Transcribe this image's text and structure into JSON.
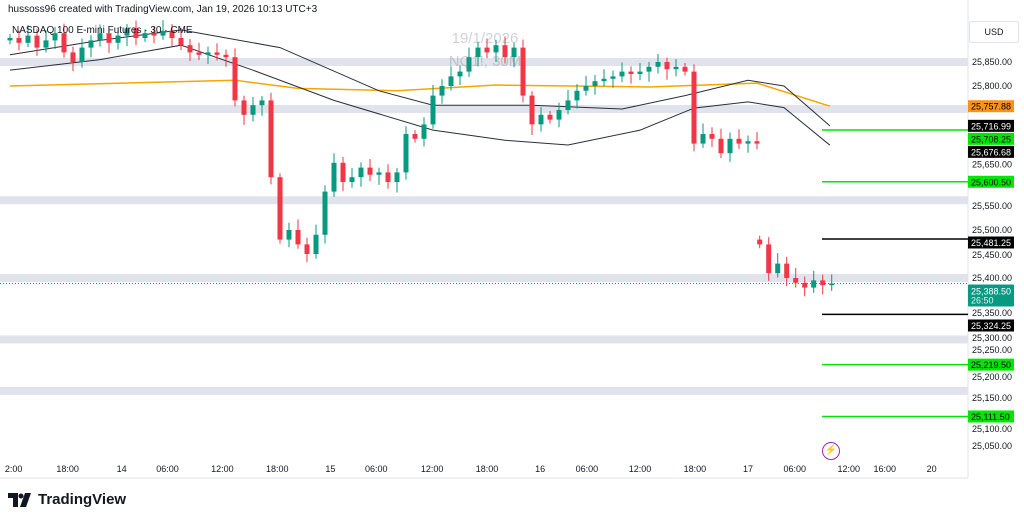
{
  "header": {
    "credit": "hussoss96 created with TradingView.com, Jan 19, 2026 10:13 UTC+3"
  },
  "symbol": {
    "title": "NASDAQ 100 E-mini Futures · 30 · CME"
  },
  "watermark": {
    "date": "19/1/2026",
    "ticker": "NQ1!, 30M"
  },
  "currency_button": "USD",
  "brand": {
    "name": "TradingView"
  },
  "colors": {
    "up": "#089981",
    "down": "#f23645",
    "ma": "#f7a600",
    "band": "#2a2e39",
    "level_green": "#00e600",
    "level_black": "#000000",
    "zone": "#e0e3eb"
  },
  "chart_data": {
    "type": "candlestick",
    "title": "NASDAQ 100 E-mini Futures · 30 · CME",
    "y_axis": {
      "range": [
        25000,
        25920
      ],
      "ticks": [
        "25,850.00",
        "25,800.00",
        "25,650.00",
        "25,550.00",
        "25,500.00",
        "25,450.00",
        "25,400.00",
        "25,350.00",
        "25,300.00",
        "25,250.00",
        "25,200.00",
        "25,150.00",
        "25,100.00",
        "25,050.00"
      ],
      "tick_values": [
        25850,
        25800,
        25650,
        25550,
        25500,
        25450,
        25400,
        25350,
        25300,
        25250,
        25200,
        25150,
        25100,
        25050
      ]
    },
    "x_axis": {
      "labels": [
        {
          "t": 0.4,
          "label": "2:00"
        },
        {
          "t": 6.4,
          "label": "18:00"
        },
        {
          "t": 12.4,
          "label": "14"
        },
        {
          "t": 17.5,
          "label": "06:00"
        },
        {
          "t": 23.6,
          "label": "12:00"
        },
        {
          "t": 29.7,
          "label": "18:00"
        },
        {
          "t": 35.6,
          "label": "15"
        },
        {
          "t": 40.7,
          "label": "06:00"
        },
        {
          "t": 46.9,
          "label": "12:00"
        },
        {
          "t": 53,
          "label": "18:00"
        },
        {
          "t": 58.9,
          "label": "16"
        },
        {
          "t": 64.1,
          "label": "06:00"
        },
        {
          "t": 70,
          "label": "12:00"
        },
        {
          "t": 76.1,
          "label": "18:00"
        },
        {
          "t": 82,
          "label": "17"
        },
        {
          "t": 87.2,
          "label": "06:00"
        },
        {
          "t": 93.2,
          "label": "12:00"
        },
        {
          "t": 97.2,
          "label": "16:00"
        },
        {
          "t": 102.4,
          "label": "20"
        }
      ]
    },
    "closes_segment1": [
      25900,
      25890,
      25905,
      25880,
      25895,
      25910,
      25870,
      25850,
      25880,
      25895,
      25910,
      25890,
      25905,
      25920,
      25900,
      25910,
      25905,
      25915,
      25900,
      25885,
      25870,
      25865,
      25870,
      25865,
      25860,
      25770,
      25740,
      25760,
      25770,
      25610,
      25480,
      25500,
      25470,
      25450,
      25490,
      25580,
      25640,
      25600,
      25610,
      25630,
      25615,
      25620,
      25600,
      25620,
      25700,
      25690,
      25720,
      25780,
      25800,
      25820,
      25830,
      25860,
      25880,
      25870,
      25885,
      25860,
      25880,
      25780,
      25720,
      25740,
      25730,
      25750,
      25770,
      25790,
      25800,
      25810,
      25815,
      25820,
      25830,
      25825,
      25830,
      25840,
      25850,
      25835,
      25840,
      25830,
      25680,
      25700,
      25690,
      25660,
      25690,
      25680,
      25685,
      25680
    ],
    "closes_segment2": [
      25470,
      25410,
      25430,
      25400,
      25390,
      25380,
      25395,
      25385,
      25388.5
    ],
    "segment2_start_t": 83.3,
    "ma_series": {
      "name": "MA",
      "points": [
        [
          0,
          25800
        ],
        [
          25,
          25812
        ],
        [
          32,
          25795
        ],
        [
          43,
          25790
        ],
        [
          54,
          25802
        ],
        [
          71,
          25798
        ],
        [
          83,
          25806
        ],
        [
          91.1,
          25757.88
        ]
      ]
    },
    "band_upper": {
      "points": [
        [
          0,
          25865
        ],
        [
          10,
          25895
        ],
        [
          19,
          25917
        ],
        [
          30,
          25880
        ],
        [
          41,
          25790
        ],
        [
          47,
          25760
        ],
        [
          58,
          25760
        ],
        [
          68,
          25752
        ],
        [
          75,
          25780
        ],
        [
          82,
          25812
        ],
        [
          86,
          25800
        ],
        [
          91.1,
          25716.99
        ]
      ]
    },
    "band_lower": {
      "points": [
        [
          0,
          25833
        ],
        [
          10,
          25855
        ],
        [
          19,
          25885
        ],
        [
          27,
          25833
        ],
        [
          36,
          25770
        ],
        [
          47,
          25708
        ],
        [
          55,
          25687
        ],
        [
          62,
          25677
        ],
        [
          70,
          25708
        ],
        [
          76,
          25754
        ],
        [
          82,
          25767
        ],
        [
          86,
          25755
        ],
        [
          91.1,
          25676.68
        ]
      ]
    },
    "zones": [
      25850,
      25752,
      25562,
      25400,
      25272,
      25165
    ],
    "levels": [
      {
        "value": 25708.25,
        "label": "25,708.25",
        "color": "#00e600"
      },
      {
        "value": 25600.5,
        "label": "25,600.50",
        "color": "#00e600"
      },
      {
        "value": 25481.25,
        "label": "25,481.25",
        "color": "#000000"
      },
      {
        "value": 25324.25,
        "label": "25,324.25",
        "color": "#000000"
      },
      {
        "value": 25219.5,
        "label": "25,219.50",
        "color": "#00e600"
      },
      {
        "value": 25111.5,
        "label": "25,111.50",
        "color": "#00e600"
      }
    ],
    "price_tags": [
      {
        "value": 25757.88,
        "label": "25,757.88",
        "bg": "#f7931a",
        "fg": "#000"
      },
      {
        "value": 25716.99,
        "label": "25,716.99",
        "bg": "#000000",
        "fg": "#fff"
      },
      {
        "value": 25676.68,
        "label": "25,676.68",
        "bg": "#000000",
        "fg": "#fff"
      }
    ],
    "last_price": {
      "value": 25388.5,
      "label": "25,388.50",
      "countdown": "26:50",
      "bg": "#089981"
    }
  }
}
